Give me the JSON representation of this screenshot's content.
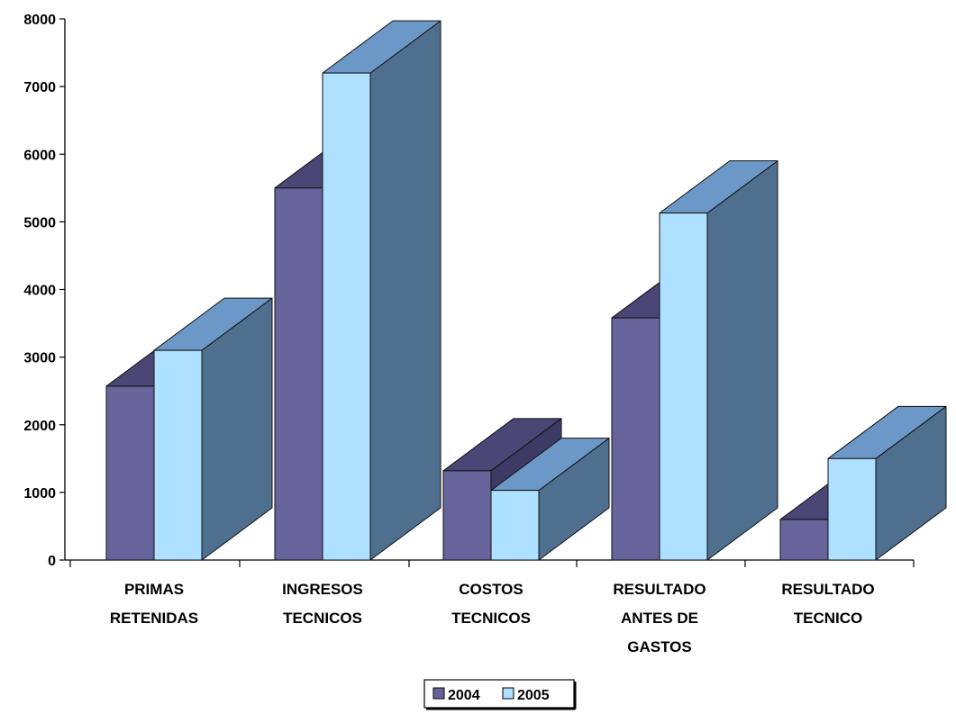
{
  "chart_data": {
    "type": "bar",
    "categories": [
      [
        "PRIMAS",
        "RETENIDAS"
      ],
      [
        "INGRESOS",
        "TECNICOS"
      ],
      [
        "COSTOS",
        "TECNICOS"
      ],
      [
        "RESULTADO",
        "ANTES DE",
        "GASTOS"
      ],
      [
        "RESULTADO",
        "TECNICO"
      ]
    ],
    "series": [
      {
        "name": "2004",
        "values": [
          2570,
          5500,
          1320,
          3580,
          600
        ],
        "colors": {
          "front": "#67639b",
          "top": "#4a4676",
          "side": "#3d3a66"
        }
      },
      {
        "name": "2005",
        "values": [
          3100,
          7200,
          1030,
          5130,
          1500
        ],
        "colors": {
          "front": "#aee0ff",
          "top": "#6c98c7",
          "side": "#4f6f8f"
        }
      }
    ],
    "ylim": [
      0,
      8000
    ],
    "yticks": [
      "0",
      "1000",
      "2000",
      "3000",
      "4000",
      "5000",
      "6000",
      "7000",
      "8000"
    ],
    "style": "3d-clustered-column",
    "grid": false,
    "legend_position": "bottom-center"
  }
}
